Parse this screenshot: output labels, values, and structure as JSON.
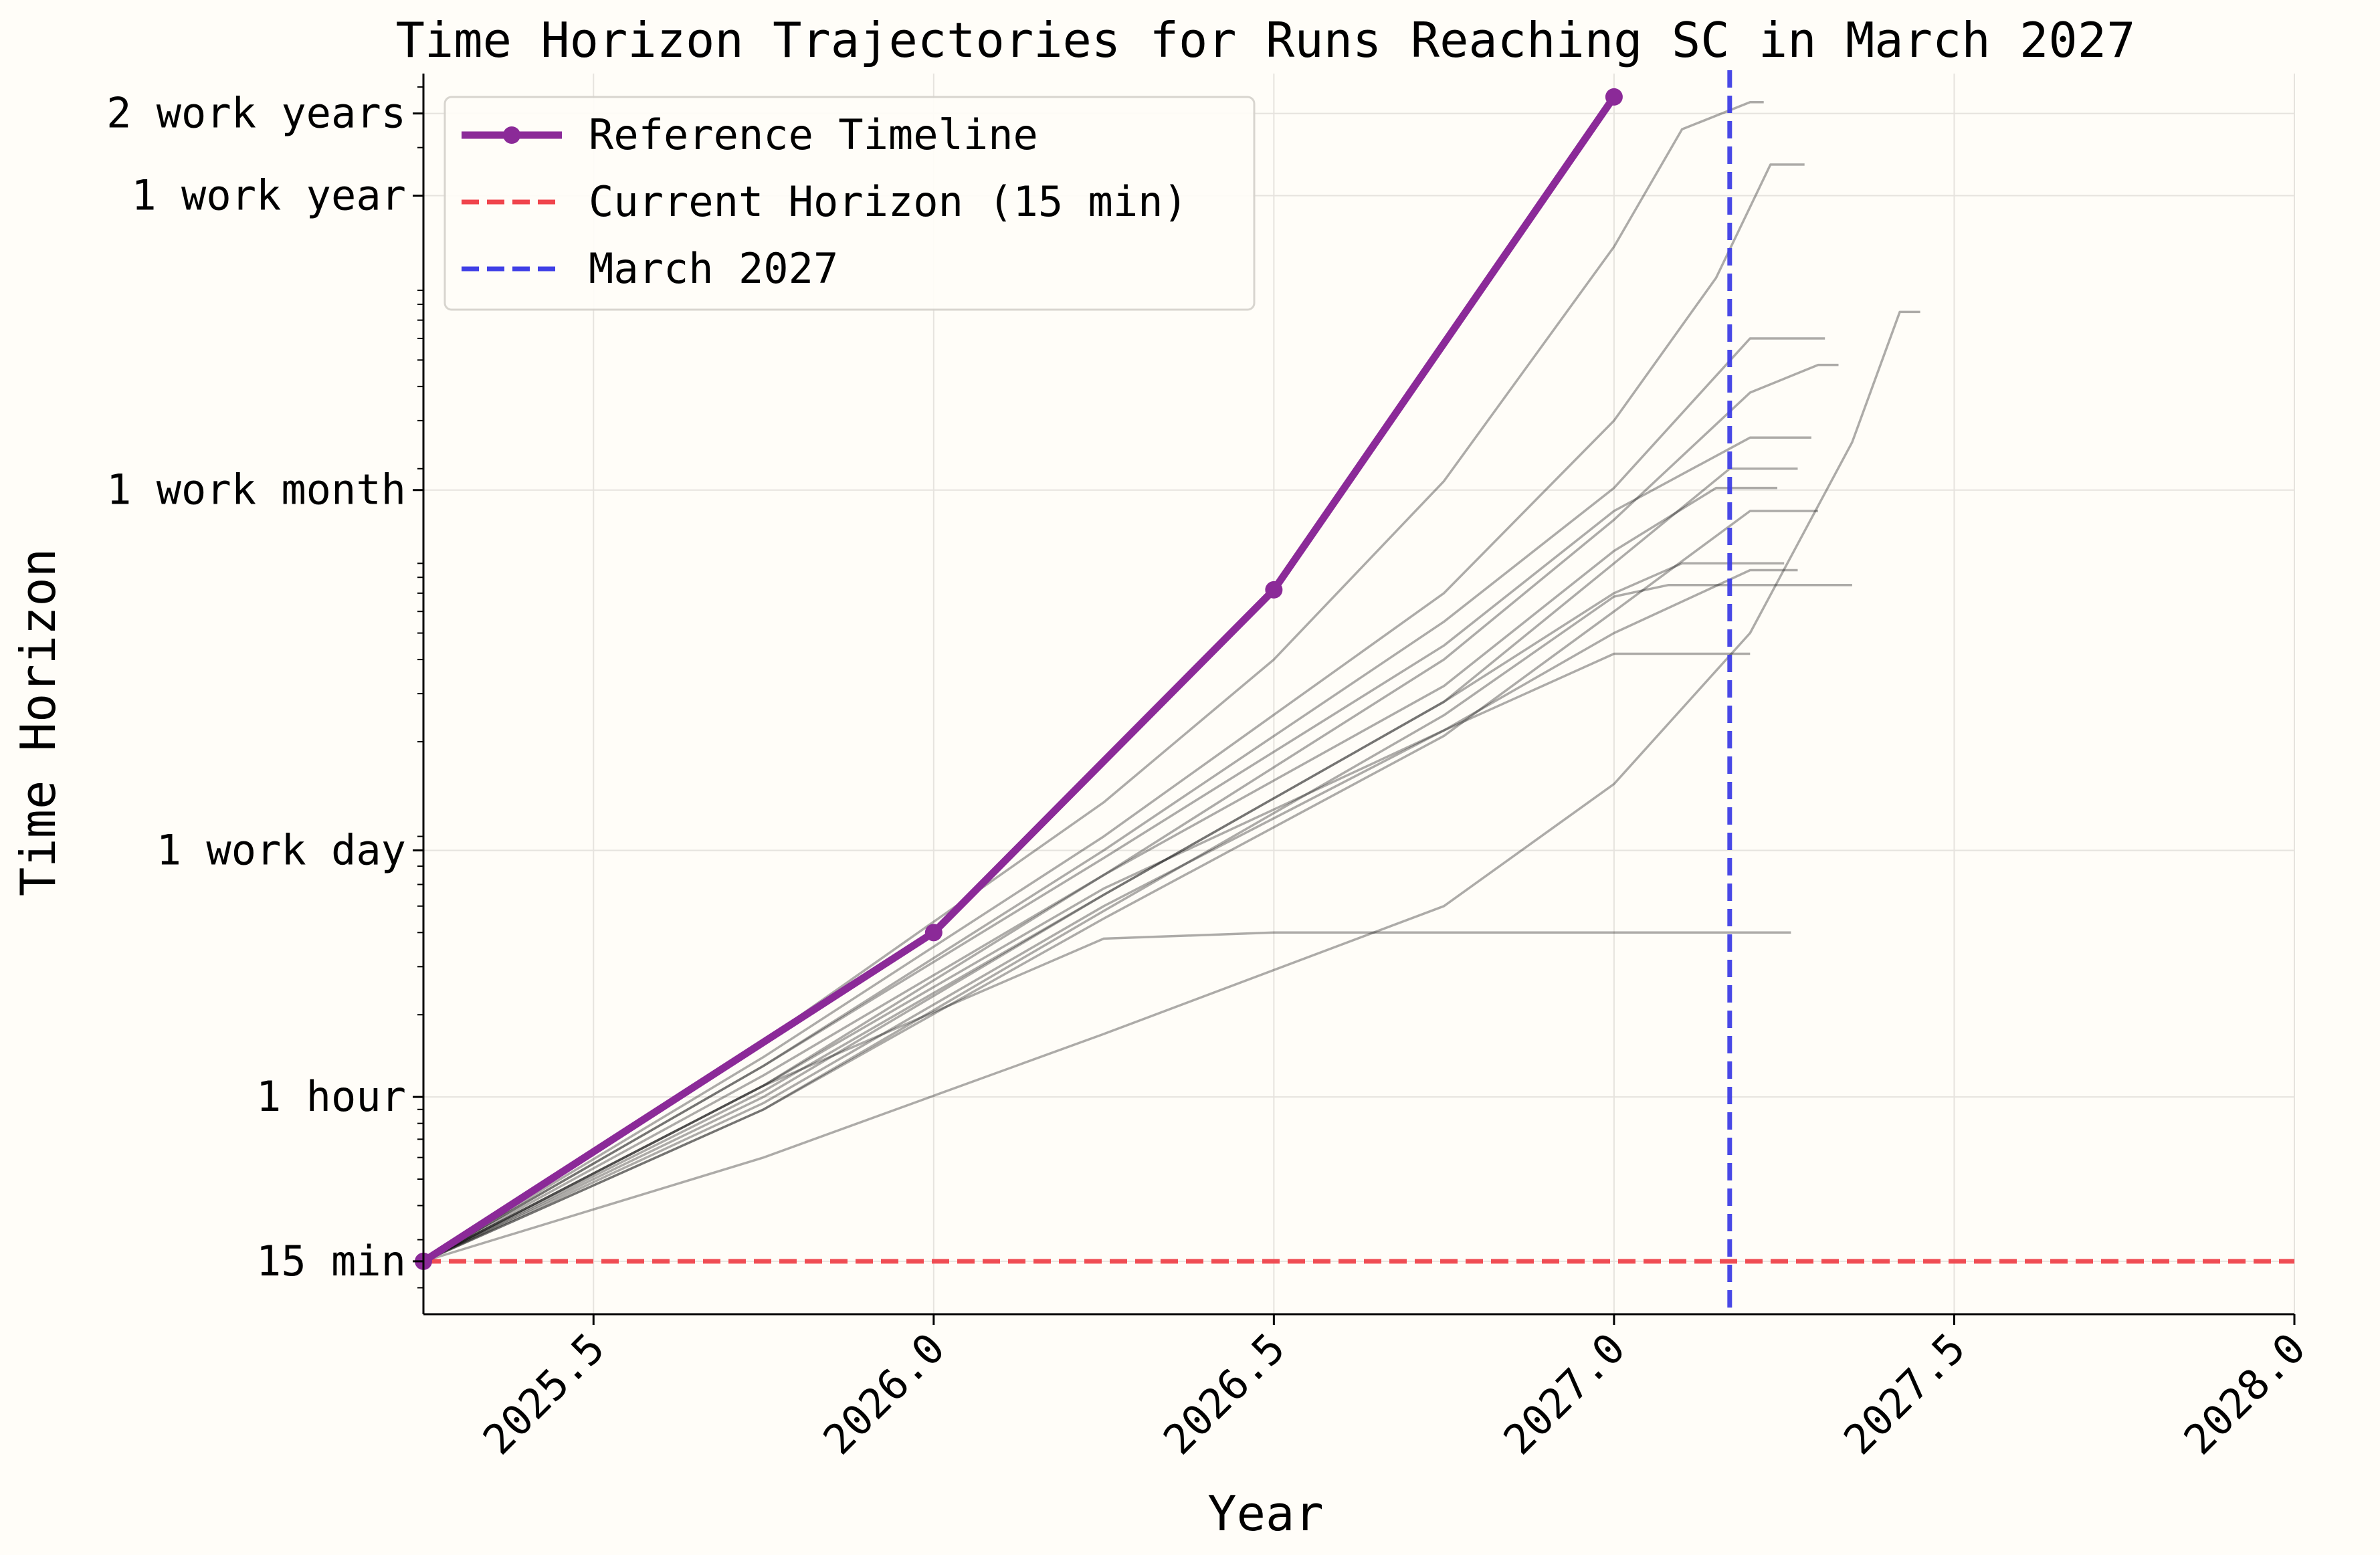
{
  "chart_data": {
    "type": "line",
    "title": "Time Horizon Trajectories for Runs Reaching SC in March 2027",
    "xlabel": "Year",
    "ylabel": "Time Horizon",
    "xlim": [
      2025.25,
      2028.0
    ],
    "ylim_hours": [
      0.16,
      5600
    ],
    "y_scale": "log",
    "grid": true,
    "legend_position": "top-left",
    "x_ticks": [
      {
        "value": 2025.5,
        "label": "2025.5"
      },
      {
        "value": 2026.0,
        "label": "2026.0"
      },
      {
        "value": 2026.5,
        "label": "2026.5"
      },
      {
        "value": 2027.0,
        "label": "2027.0"
      },
      {
        "value": 2027.5,
        "label": "2027.5"
      },
      {
        "value": 2028.0,
        "label": "2028.0"
      }
    ],
    "y_ticks": [
      {
        "value_hours": 0.25,
        "label": "15 min"
      },
      {
        "value_hours": 1,
        "label": "1 hour"
      },
      {
        "value_hours": 8,
        "label": "1 work day"
      },
      {
        "value_hours": 167,
        "label": "1 work month"
      },
      {
        "value_hours": 2000,
        "label": "1 work year"
      },
      {
        "value_hours": 4000,
        "label": "2 work years"
      }
    ],
    "series": [
      {
        "name": "Reference Timeline",
        "color": "#8b2a98",
        "kind": "line-markers",
        "x": [
          2025.25,
          2026.0,
          2026.5,
          2027.0
        ],
        "y_hours": [
          0.25,
          4,
          72,
          4600
        ]
      },
      {
        "name": "Current Horizon (15 min)",
        "color": "#f0444c",
        "kind": "hline",
        "y_hours": 0.25
      },
      {
        "name": "March 2027",
        "color": "#3f3fe6",
        "kind": "vline",
        "x": 2027.17
      }
    ],
    "trajectories": [
      {
        "x": [
          2025.25,
          2025.75,
          2026.25,
          2026.5,
          2026.75,
          2027.0,
          2027.1,
          2027.2,
          2027.22
        ],
        "y_hours": [
          0.25,
          1.6,
          12,
          40,
          180,
          1300,
          3500,
          4400,
          4400
        ]
      },
      {
        "x": [
          2025.25,
          2025.75,
          2026.25,
          2026.75,
          2027.0,
          2027.15,
          2027.23,
          2027.28
        ],
        "y_hours": [
          0.25,
          1.4,
          9,
          70,
          300,
          1000,
          2600,
          2600
        ]
      },
      {
        "x": [
          2025.25,
          2025.75,
          2026.25,
          2026.75,
          2027.0,
          2027.2,
          2027.31
        ],
        "y_hours": [
          0.25,
          1.3,
          8,
          55,
          170,
          600,
          600
        ]
      },
      {
        "x": [
          2025.25,
          2025.75,
          2026.25,
          2026.75,
          2027.0,
          2027.2,
          2027.3,
          2027.33
        ],
        "y_hours": [
          0.25,
          1.1,
          6.5,
          40,
          130,
          380,
          480,
          480
        ]
      },
      {
        "x": [
          2025.25,
          2025.75,
          2026.25,
          2026.75,
          2027.0,
          2027.2,
          2027.29
        ],
        "y_hours": [
          0.25,
          1.3,
          7.5,
          45,
          140,
          260,
          260
        ]
      },
      {
        "x": [
          2025.25,
          2025.75,
          2026.25,
          2026.75,
          2027.0,
          2027.15,
          2027.24
        ],
        "y_hours": [
          0.25,
          1.2,
          6.5,
          32,
          100,
          170,
          170
        ]
      },
      {
        "x": [
          2025.25,
          2025.75,
          2026.25,
          2026.75,
          2027.0,
          2027.17,
          2027.27
        ],
        "y_hours": [
          0.25,
          1.05,
          5.5,
          28,
          90,
          200,
          200
        ]
      },
      {
        "x": [
          2025.25,
          2025.75,
          2026.25,
          2026.75,
          2027.0,
          2027.2,
          2027.3
        ],
        "y_hours": [
          0.25,
          0.9,
          4.5,
          21,
          60,
          140,
          140
        ]
      },
      {
        "x": [
          2025.25,
          2025.75,
          2026.25,
          2026.75,
          2027.0,
          2027.1,
          2027.25
        ],
        "y_hours": [
          0.25,
          1.0,
          5.5,
          28,
          70,
          90,
          90
        ]
      },
      {
        "x": [
          2025.25,
          2025.75,
          2026.25,
          2026.75,
          2027.0,
          2027.08,
          2027.35
        ],
        "y_hours": [
          0.25,
          0.9,
          4.8,
          25,
          68,
          75,
          75
        ]
      },
      {
        "x": [
          2025.25,
          2025.75,
          2026.25,
          2026.75,
          2027.0,
          2027.2,
          2027.27
        ],
        "y_hours": [
          0.25,
          0.95,
          5,
          22,
          50,
          85,
          85
        ]
      },
      {
        "x": [
          2025.25,
          2025.75,
          2026.25,
          2026.75,
          2027.0,
          2027.2
        ],
        "y_hours": [
          0.25,
          1.1,
          5.8,
          22,
          42,
          42
        ]
      },
      {
        "x": [
          2025.25,
          2025.75,
          2026.25,
          2026.5,
          2026.68,
          2027.26
        ],
        "y_hours": [
          0.25,
          1.1,
          3.8,
          4.0,
          4.0,
          4.0
        ]
      },
      {
        "x": [
          2025.25,
          2025.75,
          2026.25,
          2026.75,
          2027.0,
          2027.2,
          2027.35,
          2027.42,
          2027.45
        ],
        "y_hours": [
          0.25,
          0.6,
          1.7,
          5,
          14,
          50,
          250,
          750,
          750
        ]
      }
    ]
  }
}
